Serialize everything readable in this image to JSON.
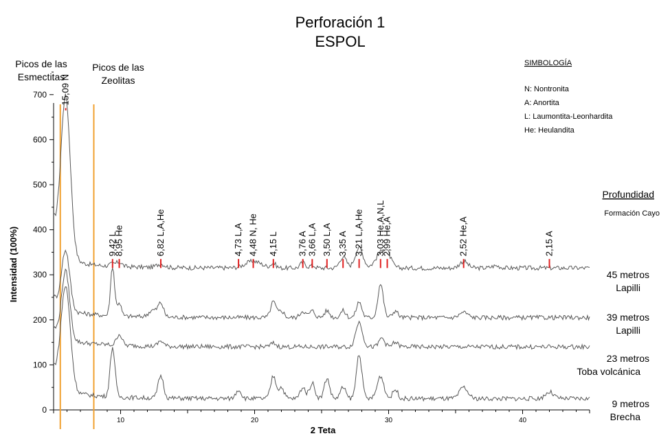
{
  "chart_data": {
    "type": "line",
    "title": "Perforación 1",
    "subtitle": "ESPOL",
    "xlabel": "2 Teta",
    "ylabel": "Intensidad (100%)",
    "xlim": [
      5,
      45
    ],
    "ylim": [
      0,
      750
    ],
    "x_ticks": [
      "10",
      "20",
      "30",
      "40"
    ],
    "y_ticks": [
      "0",
      "100",
      "200",
      "300",
      "400",
      "500",
      "600",
      "700"
    ],
    "vertical_markers": [
      {
        "label_line1": "Picos de las",
        "label_line2": "Esmectitas",
        "x": 5.5,
        "color": "#F0A030"
      },
      {
        "label_line1": "Picos de las",
        "label_line2": "Zeolitas",
        "x": 8.0,
        "color": "#F0A030"
      }
    ],
    "legend": {
      "title": "SIMBOLOGÍA",
      "items": [
        "N:  Nontronita",
        "A:  Anortita",
        "L:  Laumontita-Leonhardita",
        "He: Heulandita"
      ]
    },
    "depth_header": "Profundidad",
    "formation": "Formación Cayo",
    "series": [
      {
        "name": "45 metros",
        "line2": "Lapilli",
        "baseline": 315
      },
      {
        "name": "39 metros",
        "line2": "Lapilli",
        "baseline": 205
      },
      {
        "name": "23 metros",
        "line2": "Toba volcánica",
        "baseline": 140
      },
      {
        "name": "9 metros",
        "line2": "Brecha",
        "baseline": 25
      }
    ],
    "peaks": [
      {
        "x": 5.9,
        "d": "15,09",
        "mineral": "N"
      },
      {
        "x": 9.4,
        "d": "9,42",
        "mineral": "L"
      },
      {
        "x": 9.9,
        "d": "8,95",
        "mineral": "He"
      },
      {
        "x": 13.0,
        "d": "6,82",
        "mineral": "L,A,He"
      },
      {
        "x": 18.8,
        "d": "4,73",
        "mineral": "L,A"
      },
      {
        "x": 19.9,
        "d": "4,48",
        "mineral": "N, He"
      },
      {
        "x": 21.4,
        "d": "4,15",
        "mineral": "L"
      },
      {
        "x": 23.6,
        "d": "3,76",
        "mineral": "A"
      },
      {
        "x": 24.3,
        "d": "3,66",
        "mineral": "L,A"
      },
      {
        "x": 25.4,
        "d": "3,50",
        "mineral": "L,A"
      },
      {
        "x": 26.6,
        "d": "3,35",
        "mineral": "A"
      },
      {
        "x": 27.8,
        "d": "3,21",
        "mineral": "L,A,He"
      },
      {
        "x": 29.4,
        "d": "3,03",
        "mineral": "He,A,N,L"
      },
      {
        "x": 29.9,
        "d": "2,99",
        "mineral": "He,A"
      },
      {
        "x": 35.6,
        "d": "2,52",
        "mineral": "He,A"
      },
      {
        "x": 42.0,
        "d": "2,15",
        "mineral": "A"
      }
    ]
  },
  "colors": {
    "trace": "#555555",
    "marker": "#F0A030",
    "peak_tick": "#E02020",
    "axis": "#000000"
  }
}
